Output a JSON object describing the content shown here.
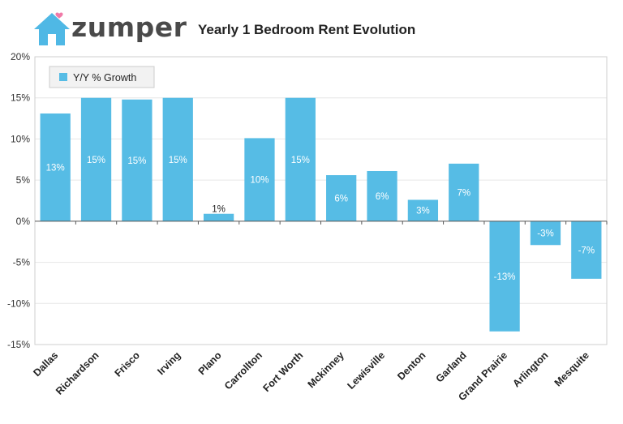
{
  "brand": {
    "name": "zumper",
    "icon": "house-icon",
    "icon_color": "#4fb8e5",
    "heart_color": "#f07aa8"
  },
  "chart_data": {
    "type": "bar",
    "title": "Yearly 1 Bedroom Rent Evolution",
    "xlabel": "",
    "ylabel": "",
    "ylim": [
      -15,
      20
    ],
    "yticks": [
      -15,
      -10,
      -5,
      0,
      5,
      10,
      15,
      20
    ],
    "ytick_labels": [
      "-15%",
      "-10%",
      "-5%",
      "0%",
      "5%",
      "10%",
      "15%",
      "20%"
    ],
    "grid": true,
    "legend_position": "top-left",
    "categories": [
      "Dallas",
      "Richardson",
      "Frisco",
      "Irving",
      "Plano",
      "Carrollton",
      "Fort Worth",
      "Mckinney",
      "Lewisville",
      "Denton",
      "Garland",
      "Grand Prairie",
      "Arlington",
      "Mesquite"
    ],
    "series": [
      {
        "name": "Y/Y % Growth",
        "color": "#56bce5",
        "values": [
          13.1,
          15.0,
          14.8,
          15.0,
          0.9,
          10.1,
          15.0,
          5.6,
          6.1,
          2.6,
          7.0,
          -13.4,
          -2.9,
          -7.0
        ],
        "labels": [
          "13%",
          "15%",
          "15%",
          "15%",
          "1%",
          "10%",
          "15%",
          "6%",
          "6%",
          "3%",
          "7%",
          "-13%",
          "-3%",
          "-7%"
        ]
      }
    ]
  }
}
